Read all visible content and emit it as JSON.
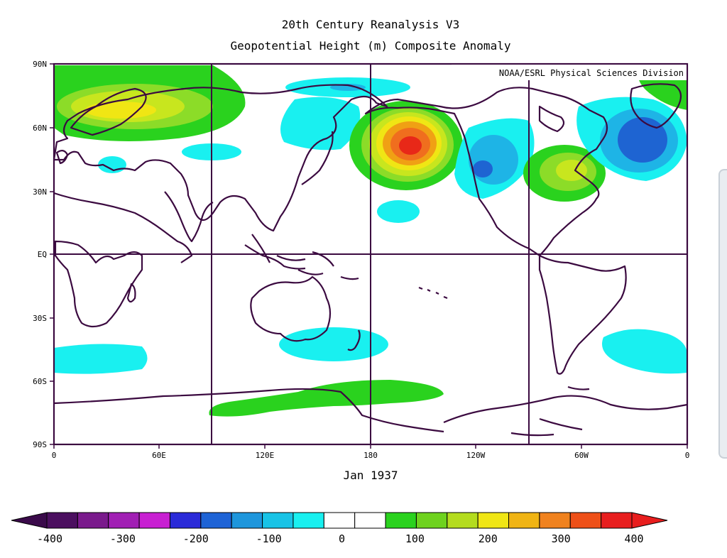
{
  "title_line1": "20th Century Reanalysis V3",
  "title_line2": "Geopotential Height (m) Composite Anomaly",
  "credit": "NOAA/ESRL Physical Sciences Division",
  "date": "Jan 1937",
  "lat_labels": [
    "90N",
    "60N",
    "30N",
    "EQ",
    "30S",
    "60S",
    "90S"
  ],
  "lon_labels": [
    "0",
    "60E",
    "120E",
    "180",
    "120W",
    "60W",
    "0"
  ],
  "colorbar": {
    "labels": [
      "-400",
      "-300",
      "-200",
      "-100",
      "0",
      "100",
      "200",
      "300",
      "400"
    ],
    "colors": [
      "#4b0f5f",
      "#7a1a8c",
      "#a11fb4",
      "#c81fd2",
      "#2a2ad8",
      "#1e63d6",
      "#1e96dc",
      "#18c3e6",
      "#19f0f0",
      "#ffffff",
      "#ffffff",
      "#2ad21e",
      "#6ed21e",
      "#b4dc1e",
      "#f0e614",
      "#f0b414",
      "#f0821e",
      "#ee5018",
      "#e81e1e"
    ],
    "low_color": "#3a0a4a",
    "high_color": "#e81e1e"
  },
  "anomaly_colors": {
    "cyan": "#19f0f0",
    "lightblue": "#1eb4e6",
    "blue": "#1e64d2",
    "green": "#2ad21e",
    "lightgreen": "#8cdc28",
    "yellowgreen": "#c8e61e",
    "yellow": "#f0e614",
    "orange": "#f0a014",
    "darkorange": "#f06e1e",
    "red": "#e82818"
  }
}
